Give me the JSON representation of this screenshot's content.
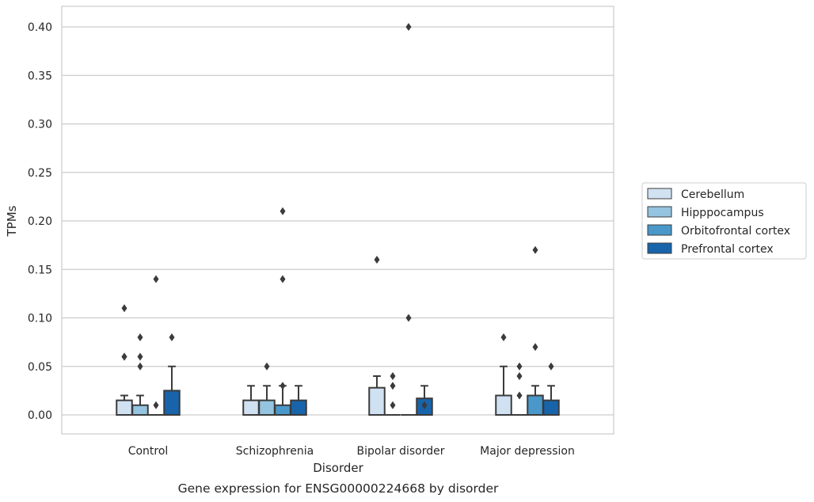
{
  "chart_data": {
    "type": "boxplot",
    "title": "Gene expression for ENSG00000224668 by disorder",
    "xlabel": "Disorder",
    "ylabel": "TPMs",
    "ylim": [
      -0.019,
      0.42
    ],
    "yticks": [
      0.0,
      0.05,
      0.1,
      0.15,
      0.2,
      0.25,
      0.3,
      0.35,
      0.4
    ],
    "ytick_labels": [
      "0.00",
      "0.05",
      "0.10",
      "0.15",
      "0.20",
      "0.25",
      "0.30",
      "0.35",
      "0.40"
    ],
    "grid": true,
    "legend_position": "right",
    "categories": [
      "Control",
      "Schizophrenia",
      "Bipolar disorder",
      "Major depression"
    ],
    "series": [
      {
        "name": "Cerebellum",
        "color": "#d0e1f2",
        "boxes": [
          {
            "q1": 0.0,
            "q3": 0.015,
            "median": 0.0,
            "whisker_low": 0.0,
            "whisker_high": 0.02,
            "outliers": [
              0.06,
              0.06,
              0.11
            ]
          },
          {
            "q1": 0.0,
            "q3": 0.015,
            "median": 0.0,
            "whisker_low": 0.0,
            "whisker_high": 0.03,
            "outliers": []
          },
          {
            "q1": 0.0,
            "q3": 0.028,
            "median": 0.0,
            "whisker_low": 0.0,
            "whisker_high": 0.04,
            "outliers": [
              0.16
            ]
          },
          {
            "q1": 0.0,
            "q3": 0.02,
            "median": 0.0,
            "whisker_low": 0.0,
            "whisker_high": 0.05,
            "outliers": [
              0.08
            ]
          }
        ]
      },
      {
        "name": "Hipppocampus",
        "color": "#94c4df",
        "boxes": [
          {
            "q1": 0.0,
            "q3": 0.01,
            "median": 0.0,
            "whisker_low": 0.0,
            "whisker_high": 0.02,
            "outliers": [
              0.05,
              0.06,
              0.08
            ]
          },
          {
            "q1": 0.0,
            "q3": 0.015,
            "median": 0.0,
            "whisker_low": 0.0,
            "whisker_high": 0.03,
            "outliers": [
              0.05
            ]
          },
          {
            "q1": 0.0,
            "q3": 0.0,
            "median": 0.0,
            "whisker_low": 0.0,
            "whisker_high": 0.0,
            "outliers": [
              0.01,
              0.03,
              0.04
            ]
          },
          {
            "q1": 0.0,
            "q3": 0.0,
            "median": 0.0,
            "whisker_low": 0.0,
            "whisker_high": 0.0,
            "outliers": [
              0.02,
              0.04,
              0.05
            ]
          }
        ]
      },
      {
        "name": "Orbitofrontal cortex",
        "color": "#4a98c9",
        "boxes": [
          {
            "q1": 0.0,
            "q3": 0.0,
            "median": 0.0,
            "whisker_low": 0.0,
            "whisker_high": 0.0,
            "outliers": [
              0.01,
              0.14
            ]
          },
          {
            "q1": 0.0,
            "q3": 0.01,
            "median": 0.0,
            "whisker_low": 0.0,
            "whisker_high": 0.03,
            "outliers": [
              0.03,
              0.14,
              0.21
            ]
          },
          {
            "q1": 0.0,
            "q3": 0.0,
            "median": 0.0,
            "whisker_low": 0.0,
            "whisker_high": 0.0,
            "outliers": [
              0.1,
              0.4
            ]
          },
          {
            "q1": 0.0,
            "q3": 0.02,
            "median": 0.0,
            "whisker_low": 0.0,
            "whisker_high": 0.03,
            "outliers": [
              0.07,
              0.17
            ]
          }
        ]
      },
      {
        "name": "Prefrontal cortex",
        "color": "#1764ab",
        "boxes": [
          {
            "q1": 0.0,
            "q3": 0.025,
            "median": 0.0,
            "whisker_low": 0.0,
            "whisker_high": 0.05,
            "outliers": [
              0.08
            ]
          },
          {
            "q1": 0.0,
            "q3": 0.015,
            "median": 0.0,
            "whisker_low": 0.0,
            "whisker_high": 0.03,
            "outliers": []
          },
          {
            "q1": 0.0,
            "q3": 0.017,
            "median": 0.0,
            "whisker_low": 0.0,
            "whisker_high": 0.03,
            "outliers": [
              0.01
            ]
          },
          {
            "q1": 0.0,
            "q3": 0.015,
            "median": 0.0,
            "whisker_low": 0.0,
            "whisker_high": 0.03,
            "outliers": [
              0.05
            ]
          }
        ]
      }
    ]
  }
}
